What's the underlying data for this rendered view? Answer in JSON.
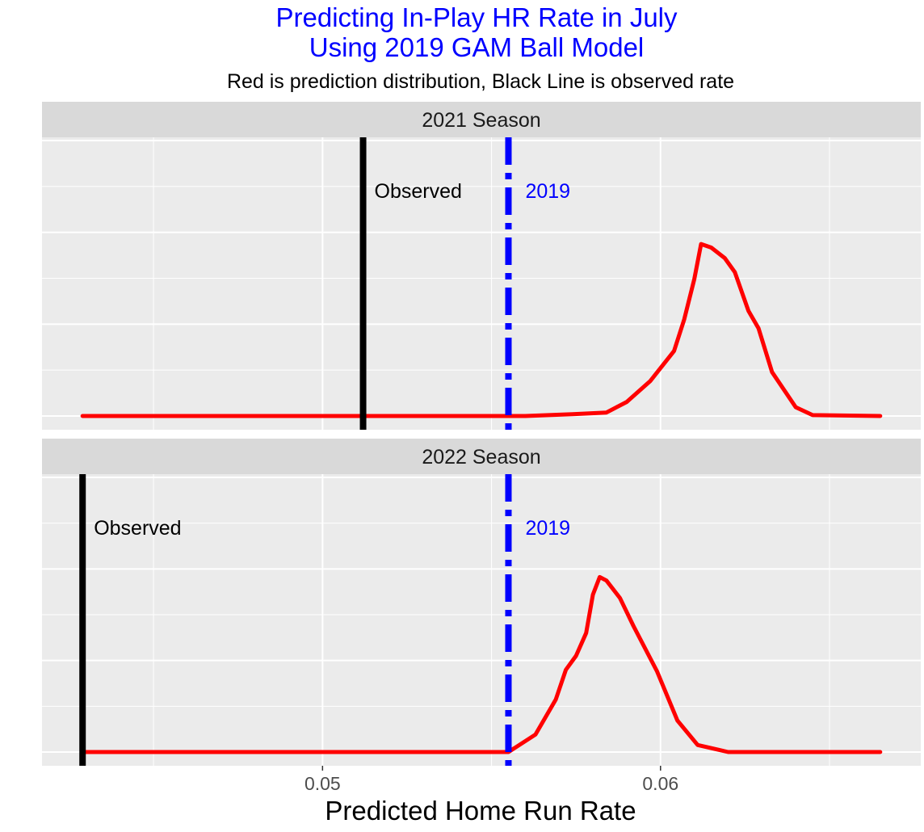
{
  "chart_data": {
    "type": "density",
    "title_lines": [
      "Predicting In-Play HR Rate in July",
      "Using 2019 GAM Ball Model"
    ],
    "subtitle": "Red is prediction distribution, Black Line is observed rate",
    "xlabel": "Predicted Home Run Rate",
    "ylabel": "",
    "xlim": [
      0.0417,
      0.0677
    ],
    "x_ticks": [
      {
        "value": 0.05,
        "label": "0.05"
      },
      {
        "value": 0.06,
        "label": "0.06"
      }
    ],
    "x_minor": [
      0.045,
      0.055,
      0.065
    ],
    "grid": true,
    "colors": {
      "density": "#ff0000",
      "observed": "#000000",
      "reference": "#0000ff",
      "title": "#0000ff"
    },
    "panels": [
      {
        "strip": "2021 Season",
        "observed": {
          "x": 0.0512,
          "label": "Observed"
        },
        "reference": {
          "x": 0.0555,
          "label": "2019"
        },
        "density": {
          "x": [
            0.0429,
            0.056,
            0.0574,
            0.0584,
            0.059,
            0.0597,
            0.0604,
            0.0607,
            0.061,
            0.0612,
            0.0615,
            0.0619,
            0.0622,
            0.0626,
            0.0629,
            0.0633,
            0.064,
            0.0645,
            0.0665
          ],
          "y": [
            0,
            0,
            0.01,
            0.02,
            0.08,
            0.2,
            0.37,
            0.55,
            0.78,
            0.98,
            0.96,
            0.9,
            0.82,
            0.6,
            0.5,
            0.25,
            0.05,
            0.005,
            0
          ]
        }
      },
      {
        "strip": "2022 Season",
        "observed": {
          "x": 0.0429,
          "label": "Observed"
        },
        "reference": {
          "x": 0.0555,
          "label": "2019"
        },
        "density": {
          "x": [
            0.0429,
            0.0555,
            0.0563,
            0.0569,
            0.0572,
            0.0575,
            0.0578,
            0.058,
            0.0582,
            0.0584,
            0.0588,
            0.0592,
            0.0599,
            0.0605,
            0.0611,
            0.062,
            0.0665
          ],
          "y": [
            0,
            0,
            0.1,
            0.3,
            0.47,
            0.55,
            0.68,
            0.9,
            1.0,
            0.98,
            0.88,
            0.72,
            0.46,
            0.18,
            0.04,
            0,
            0
          ]
        }
      }
    ]
  }
}
